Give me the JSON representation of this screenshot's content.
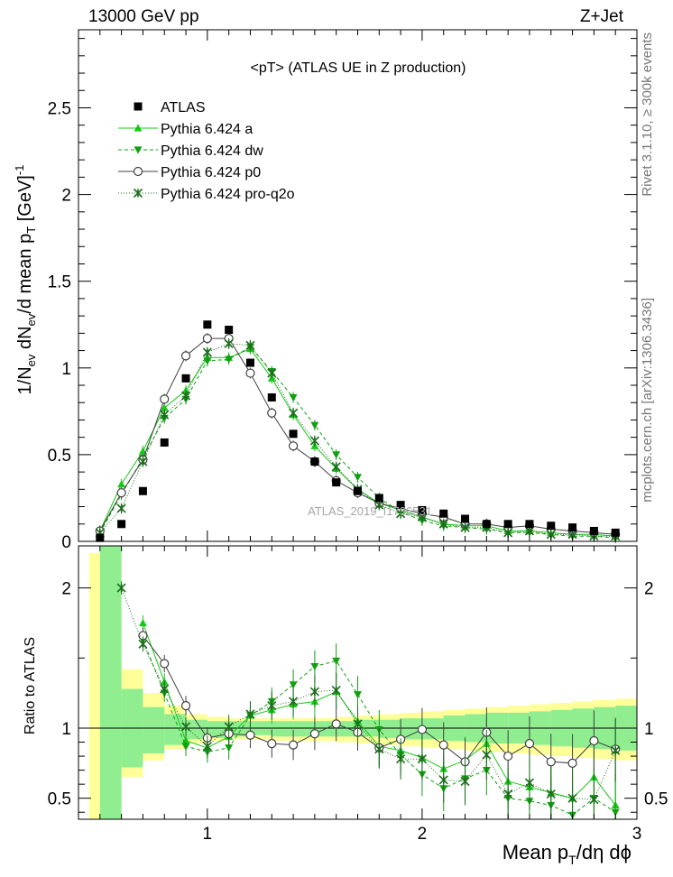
{
  "header": {
    "left": "13000 GeV pp",
    "right": "Z+Jet"
  },
  "side_labels": {
    "rivet": "Rivet 3.1.10, ≥ 300k events",
    "mcplots": "mcplots.cern.ch [arXiv:1306.3436]"
  },
  "watermark": "ATLAS_2019_I1736531",
  "chart_data": {
    "type": "scatter",
    "title": "<pT> (ATLAS UE in Z production)",
    "xlabel": "Mean p_T/dη dϕ",
    "ylabel": "1/N_ev dN_ev/d mean p_T [GeV]^-1",
    "ratio_ylabel": "Ratio to ATLAS",
    "xlim": [
      0.4,
      3.0
    ],
    "ylim": [
      0,
      2.95
    ],
    "ratio_ylim": [
      0.35,
      2.3
    ],
    "xticks": [
      {
        "v": 1,
        "label": "1"
      },
      {
        "v": 2,
        "label": "2"
      },
      {
        "v": 3,
        "label": "3"
      }
    ],
    "yticks": [
      {
        "v": 0,
        "label": "0"
      },
      {
        "v": 0.5,
        "label": "0.5"
      },
      {
        "v": 1,
        "label": "1"
      },
      {
        "v": 1.5,
        "label": "1.5"
      },
      {
        "v": 2,
        "label": "2"
      },
      {
        "v": 2.5,
        "label": "2.5"
      }
    ],
    "ratio_yticks": [
      {
        "v": 0.5,
        "label": "0.5"
      },
      {
        "v": 1,
        "label": "1"
      },
      {
        "v": 2,
        "label": "2"
      }
    ],
    "legend_position": "top-left",
    "x": [
      0.5,
      0.6,
      0.7,
      0.8,
      0.9,
      1.0,
      1.1,
      1.2,
      1.3,
      1.4,
      1.5,
      1.6,
      1.7,
      1.8,
      1.9,
      2.0,
      2.1,
      2.2,
      2.3,
      2.4,
      2.5,
      2.6,
      2.7,
      2.8,
      2.9
    ],
    "data": {
      "name": "ATLAS",
      "values": [
        0.02,
        0.1,
        0.29,
        0.57,
        0.94,
        1.25,
        1.22,
        1.03,
        0.83,
        0.62,
        0.46,
        0.34,
        0.29,
        0.25,
        0.21,
        0.18,
        0.16,
        0.13,
        0.1,
        0.1,
        0.1,
        0.09,
        0.08,
        0.06,
        0.05
      ]
    },
    "series": [
      {
        "name": "Pythia 6.424 a",
        "color": "#18c818",
        "marker": "triangle-up",
        "dash": "",
        "values": [
          0.06,
          0.33,
          0.52,
          0.77,
          0.87,
          1.06,
          1.06,
          1.11,
          0.94,
          0.73,
          0.55,
          0.42,
          0.3,
          0.22,
          0.18,
          0.14,
          0.1,
          0.09,
          0.09,
          0.06,
          0.06,
          0.05,
          0.04,
          0.04,
          0.03
        ]
      },
      {
        "name": "Pythia 6.424 dw",
        "color": "#10a010",
        "marker": "triangle-down",
        "dash": "4,3",
        "values": [
          0.05,
          0.27,
          0.48,
          0.71,
          0.82,
          1.04,
          1.05,
          1.12,
          0.98,
          0.83,
          0.67,
          0.5,
          0.37,
          0.25,
          0.17,
          0.12,
          0.09,
          0.08,
          0.07,
          0.05,
          0.05,
          0.04,
          0.03,
          0.03,
          0.02
        ]
      },
      {
        "name": "Pythia 6.424 p0",
        "color": "#404040",
        "marker": "circle",
        "dash": "",
        "values": [
          0.06,
          0.28,
          0.47,
          0.82,
          1.07,
          1.17,
          1.17,
          0.97,
          0.74,
          0.55,
          0.46,
          0.35,
          0.28,
          0.22,
          0.19,
          0.16,
          0.14,
          0.1,
          0.1,
          0.08,
          0.09,
          0.07,
          0.06,
          0.05,
          0.04
        ]
      },
      {
        "name": "Pythia 6.424 pro-q2o",
        "color": "#1c6c1c",
        "marker": "star",
        "dash": "1,2",
        "values": [
          0.05,
          0.19,
          0.46,
          0.73,
          0.84,
          1.09,
          1.14,
          1.13,
          0.97,
          0.74,
          0.58,
          0.43,
          0.3,
          0.21,
          0.16,
          0.14,
          0.1,
          0.08,
          0.08,
          0.05,
          0.06,
          0.04,
          0.04,
          0.03,
          0.03
        ]
      }
    ],
    "ratio_series": [
      {
        "name": "Pythia 6.424 a",
        "values": [
          null,
          null,
          1.75,
          1.33,
          0.91,
          0.86,
          0.94,
          1.09,
          1.13,
          1.17,
          1.19,
          1.26,
          1.05,
          0.87,
          0.84,
          0.79,
          0.71,
          0.77,
          0.89,
          0.62,
          0.58,
          0.54,
          0.5,
          0.65,
          0.45
        ]
      },
      {
        "name": "Pythia 6.424 dw",
        "values": [
          null,
          null,
          1.63,
          1.25,
          0.87,
          0.83,
          0.86,
          1.09,
          1.19,
          1.31,
          1.44,
          1.48,
          1.24,
          0.99,
          0.81,
          0.67,
          0.57,
          0.64,
          0.7,
          0.5,
          0.48,
          0.45,
          0.38,
          0.5,
          0.4
        ]
      },
      {
        "name": "Pythia 6.424 p0",
        "values": [
          null,
          null,
          1.66,
          1.46,
          1.16,
          0.93,
          0.96,
          0.95,
          0.89,
          0.88,
          0.96,
          1.03,
          0.97,
          0.86,
          0.92,
          0.99,
          0.88,
          0.76,
          0.97,
          0.8,
          0.89,
          0.76,
          0.75,
          0.91,
          0.85
        ]
      },
      {
        "name": "Pythia 6.424 pro-q2o",
        "values": [
          null,
          2.0,
          1.6,
          1.28,
          1.01,
          0.87,
          1.01,
          1.1,
          1.16,
          1.19,
          1.26,
          1.27,
          1.03,
          0.85,
          0.78,
          0.78,
          0.63,
          0.62,
          0.81,
          0.53,
          0.61,
          0.53,
          0.5,
          0.49,
          0.84
        ]
      }
    ],
    "band_inner": [
      [
        0.5,
        0.6,
        0.12,
        3.0
      ],
      [
        0.6,
        0.7,
        0.72,
        1.28
      ],
      [
        0.7,
        0.8,
        0.82,
        1.15
      ],
      [
        0.8,
        0.9,
        0.88,
        1.1
      ],
      [
        0.9,
        1.0,
        0.92,
        1.06
      ],
      [
        1.0,
        1.1,
        0.93,
        1.05
      ],
      [
        1.1,
        1.2,
        0.94,
        1.05
      ],
      [
        1.2,
        1.3,
        0.95,
        1.05
      ],
      [
        1.3,
        1.4,
        0.94,
        1.05
      ],
      [
        1.4,
        1.5,
        0.94,
        1.05
      ],
      [
        1.5,
        1.6,
        0.94,
        1.05
      ],
      [
        1.6,
        1.7,
        0.94,
        1.05
      ],
      [
        1.7,
        1.8,
        0.94,
        1.06
      ],
      [
        1.8,
        1.9,
        0.93,
        1.06
      ],
      [
        1.9,
        2.0,
        0.92,
        1.07
      ],
      [
        2.0,
        2.1,
        0.92,
        1.07
      ],
      [
        2.1,
        2.2,
        0.91,
        1.09
      ],
      [
        2.2,
        2.3,
        0.9,
        1.1
      ],
      [
        2.3,
        2.4,
        0.89,
        1.11
      ],
      [
        2.4,
        2.5,
        0.89,
        1.11
      ],
      [
        2.5,
        2.6,
        0.88,
        1.12
      ],
      [
        2.6,
        2.7,
        0.87,
        1.13
      ],
      [
        2.7,
        2.8,
        0.86,
        1.14
      ],
      [
        2.8,
        2.9,
        0.85,
        1.15
      ],
      [
        2.9,
        3.0,
        0.84,
        1.16
      ]
    ],
    "band_outer": [
      [
        0.45,
        0.6,
        0.12,
        2.25
      ],
      [
        0.6,
        0.7,
        0.65,
        1.42
      ],
      [
        0.7,
        0.8,
        0.77,
        1.25
      ],
      [
        0.8,
        0.9,
        0.85,
        1.16
      ],
      [
        0.9,
        1.0,
        0.89,
        1.1
      ],
      [
        1.0,
        1.1,
        0.91,
        1.08
      ],
      [
        1.1,
        1.2,
        0.92,
        1.07
      ],
      [
        1.2,
        1.3,
        0.92,
        1.07
      ],
      [
        1.3,
        1.4,
        0.91,
        1.07
      ],
      [
        1.4,
        1.5,
        0.91,
        1.07
      ],
      [
        1.5,
        1.6,
        0.91,
        1.07
      ],
      [
        1.6,
        1.7,
        0.9,
        1.08
      ],
      [
        1.7,
        1.8,
        0.89,
        1.09
      ],
      [
        1.8,
        1.9,
        0.88,
        1.1
      ],
      [
        1.9,
        2.0,
        0.87,
        1.11
      ],
      [
        2.0,
        2.1,
        0.86,
        1.12
      ],
      [
        2.1,
        2.2,
        0.85,
        1.13
      ],
      [
        2.2,
        2.3,
        0.84,
        1.14
      ],
      [
        2.3,
        2.4,
        0.83,
        1.15
      ],
      [
        2.4,
        2.5,
        0.82,
        1.16
      ],
      [
        2.5,
        2.6,
        0.81,
        1.17
      ],
      [
        2.6,
        2.7,
        0.8,
        1.18
      ],
      [
        2.7,
        2.8,
        0.79,
        1.19
      ],
      [
        2.8,
        2.9,
        0.78,
        1.2
      ],
      [
        2.9,
        3.0,
        0.77,
        1.21
      ]
    ],
    "colors": {
      "band_inner": "#90ee90",
      "band_outer": "#ffff99",
      "data": "#000000"
    }
  }
}
